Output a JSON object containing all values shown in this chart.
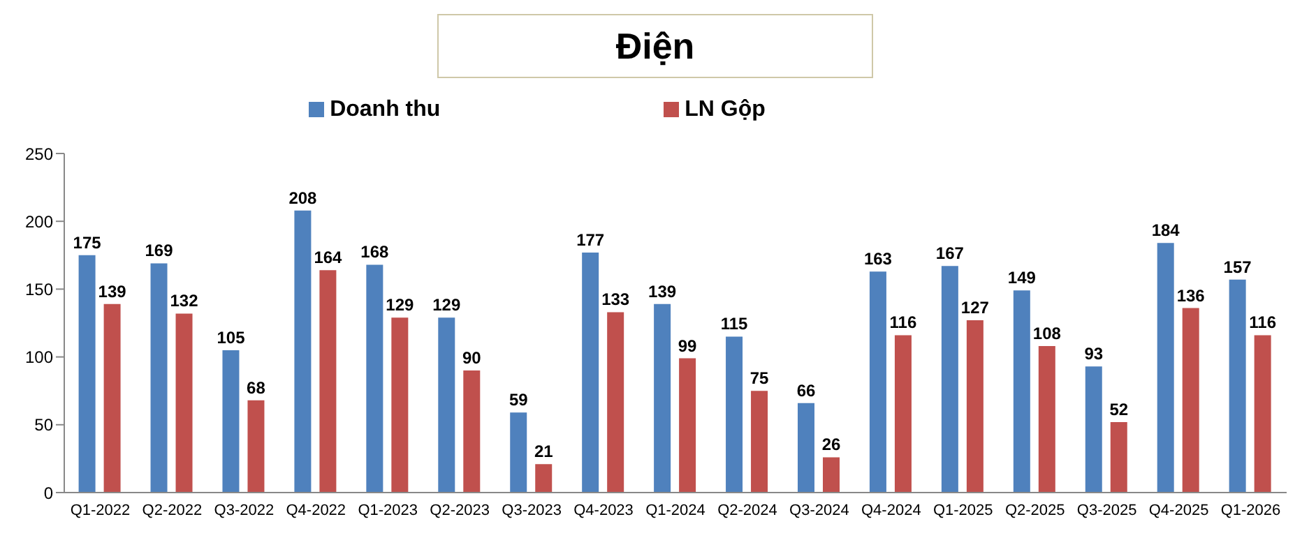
{
  "chart_data": {
    "type": "bar",
    "title": "Điện",
    "categories": [
      "Q1-2022",
      "Q2-2022",
      "Q3-2022",
      "Q4-2022",
      "Q1-2023",
      "Q2-2023",
      "Q3-2023",
      "Q4-2023",
      "Q1-2024",
      "Q2-2024",
      "Q3-2024",
      "Q4-2024",
      "Q1-2025",
      "Q2-2025",
      "Q3-2025",
      "Q4-2025",
      "Q1-2026"
    ],
    "series": [
      {
        "name": "Doanh thu",
        "color": "#4f81bd",
        "values": [
          175,
          169,
          105,
          208,
          168,
          129,
          59,
          177,
          139,
          115,
          66,
          163,
          167,
          149,
          93,
          184,
          157
        ]
      },
      {
        "name": "LN Gộp",
        "color": "#c0504d",
        "values": [
          139,
          132,
          68,
          164,
          129,
          90,
          21,
          133,
          99,
          75,
          26,
          116,
          127,
          108,
          52,
          136,
          116
        ]
      }
    ],
    "ylim": [
      0,
      250
    ],
    "yticks": [
      0,
      50,
      100,
      150,
      200,
      250
    ],
    "grid": false,
    "legend": "top",
    "data_labels": true
  }
}
